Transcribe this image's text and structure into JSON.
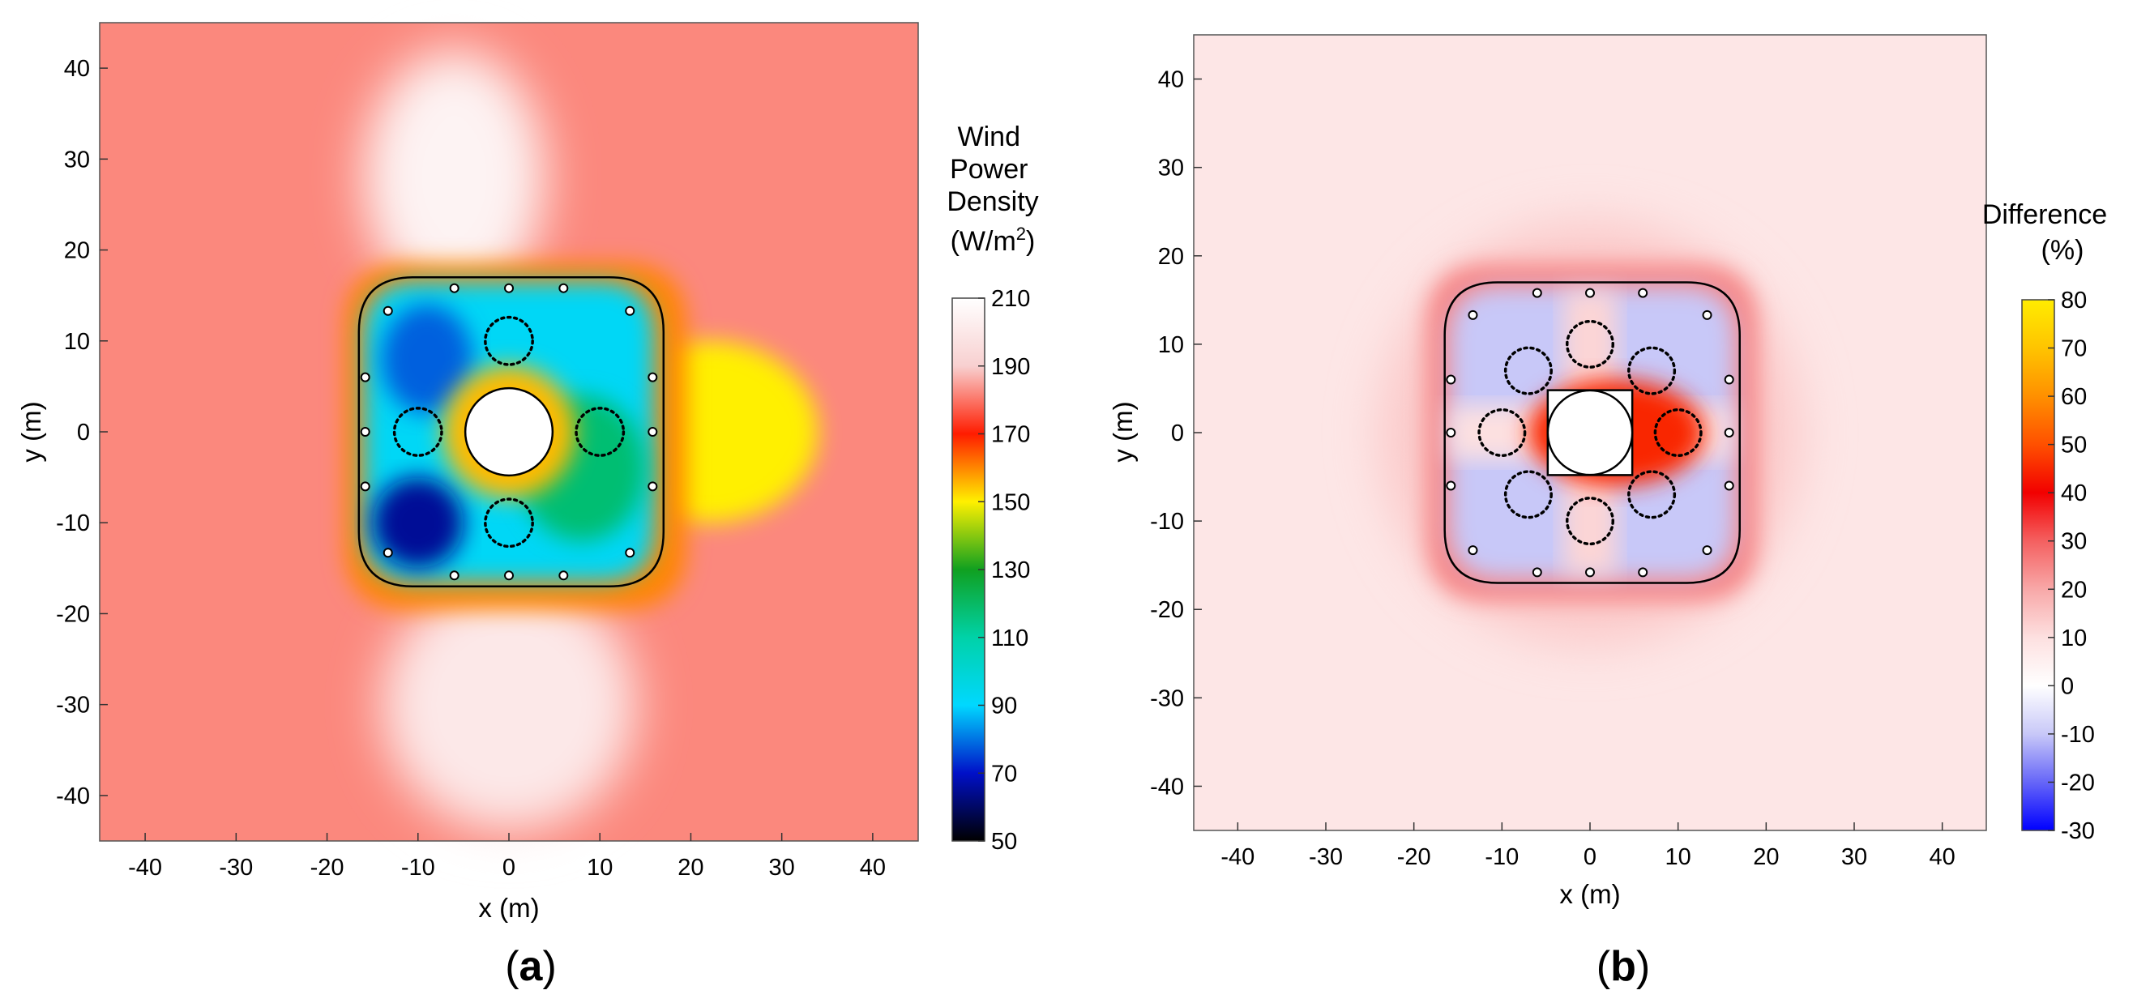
{
  "chart_data": [
    {
      "type": "heatmap",
      "panel_label": "a",
      "title": "",
      "xlabel": "x (m)",
      "ylabel": "y (m)",
      "xlim": [
        -45,
        45
      ],
      "ylim": [
        -45,
        45
      ],
      "x_ticks": [
        -40,
        -30,
        -20,
        -10,
        0,
        10,
        20,
        30,
        40
      ],
      "y_ticks": [
        40,
        30,
        20,
        10,
        0,
        -10,
        -20,
        -30,
        -40
      ],
      "colorbar": {
        "title_lines": [
          "Wind",
          "Power",
          "Density"
        ],
        "unit": "(W/m",
        "unit_sup": "2",
        "unit_close": ")",
        "range": [
          50,
          210
        ],
        "ticks": [
          210,
          190,
          170,
          150,
          130,
          110,
          90,
          70,
          50
        ],
        "stops": [
          {
            "value": 50,
            "color": "#000000"
          },
          {
            "value": 70,
            "color": "#0010c8"
          },
          {
            "value": 90,
            "color": "#00d8ff"
          },
          {
            "value": 110,
            "color": "#00d2a8"
          },
          {
            "value": 130,
            "color": "#10a020"
          },
          {
            "value": 150,
            "color": "#fff000"
          },
          {
            "value": 170,
            "color": "#ff1c00"
          },
          {
            "value": 190,
            "color": "#f8d0d0"
          },
          {
            "value": 210,
            "color": "#ffffff"
          }
        ]
      },
      "background_value": 182,
      "features": {
        "inner_zone_value": 92,
        "inner_zone_extent": {
          "x": [
            -16,
            16
          ],
          "y": [
            -16.5,
            16.5
          ]
        },
        "ring_value": 160,
        "wake_value": 150,
        "wake_extent": {
          "x": [
            16,
            32
          ],
          "y": [
            -9,
            9
          ]
        },
        "pile_radius": 4.8,
        "outline_corner_radius": 6,
        "outline_extent": {
          "x": [
            -16.5,
            17
          ],
          "y": [
            -17,
            17
          ]
        },
        "dotted_circles": [
          [
            0,
            10
          ],
          [
            -10,
            0
          ],
          [
            10,
            0
          ],
          [
            0,
            -10
          ]
        ],
        "dotted_radius": 2.6,
        "small_markers": [
          [
            -13.3,
            13.3
          ],
          [
            -6,
            15.8
          ],
          [
            0,
            15.8
          ],
          [
            6,
            15.8
          ],
          [
            13.3,
            13.3
          ],
          [
            -15.8,
            6
          ],
          [
            -15.8,
            0
          ],
          [
            -15.8,
            -6
          ],
          [
            15.8,
            6
          ],
          [
            15.8,
            0
          ],
          [
            15.8,
            -6
          ],
          [
            -13.3,
            -13.3
          ],
          [
            -6,
            -15.8
          ],
          [
            0,
            -15.8
          ],
          [
            6,
            -15.8
          ],
          [
            13.3,
            -13.3
          ]
        ]
      }
    },
    {
      "type": "heatmap",
      "panel_label": "b",
      "title": "",
      "xlabel": "x (m)",
      "ylabel": "y (m)",
      "xlim": [
        -45,
        45
      ],
      "ylim": [
        -45,
        45
      ],
      "x_ticks": [
        -40,
        -30,
        -20,
        -10,
        0,
        10,
        20,
        30,
        40
      ],
      "y_ticks": [
        40,
        30,
        20,
        10,
        0,
        -10,
        -20,
        -30,
        -40
      ],
      "colorbar": {
        "title_lines": [
          "Difference"
        ],
        "unit": "(%)",
        "unit_sup": "",
        "unit_close": "",
        "range": [
          -30,
          80
        ],
        "ticks": [
          80,
          70,
          60,
          50,
          40,
          30,
          20,
          10,
          0,
          -10,
          -20,
          -30
        ],
        "stops": [
          {
            "value": -30,
            "color": "#0000ff"
          },
          {
            "value": -20,
            "color": "#6666f8"
          },
          {
            "value": -10,
            "color": "#c8c8f8"
          },
          {
            "value": 0,
            "color": "#ffffff"
          },
          {
            "value": 10,
            "color": "#fde0e0"
          },
          {
            "value": 20,
            "color": "#f8a8a8"
          },
          {
            "value": 30,
            "color": "#f46060"
          },
          {
            "value": 40,
            "color": "#f20000"
          },
          {
            "value": 50,
            "color": "#ff5000"
          },
          {
            "value": 60,
            "color": "#ff9000"
          },
          {
            "value": 70,
            "color": "#ffc400"
          },
          {
            "value": 80,
            "color": "#ffec00"
          }
        ]
      },
      "background_value": 8,
      "features": {
        "inner_zone_value": -10,
        "ring_value": 25,
        "center_value": 45,
        "pile_radius": 4.8,
        "pile_square_half": 4.8,
        "outline_corner_radius": 6,
        "outline_extent": {
          "x": [
            -16.5,
            17
          ],
          "y": [
            -17,
            17
          ]
        },
        "dotted_circles": [
          [
            0,
            10
          ],
          [
            -7,
            7
          ],
          [
            7,
            7
          ],
          [
            -10,
            0
          ],
          [
            10,
            0
          ],
          [
            -7,
            -7
          ],
          [
            0,
            -10
          ],
          [
            7,
            -7
          ]
        ],
        "dotted_radius": 2.6,
        "small_markers": [
          [
            -13.3,
            13.3
          ],
          [
            -6,
            15.8
          ],
          [
            0,
            15.8
          ],
          [
            6,
            15.8
          ],
          [
            13.3,
            13.3
          ],
          [
            -15.8,
            6
          ],
          [
            -15.8,
            0
          ],
          [
            -15.8,
            -6
          ],
          [
            15.8,
            6
          ],
          [
            15.8,
            0
          ],
          [
            15.8,
            -6
          ],
          [
            -13.3,
            -13.3
          ],
          [
            -6,
            -15.8
          ],
          [
            0,
            -15.8
          ],
          [
            6,
            -15.8
          ],
          [
            13.3,
            -13.3
          ]
        ]
      }
    }
  ]
}
